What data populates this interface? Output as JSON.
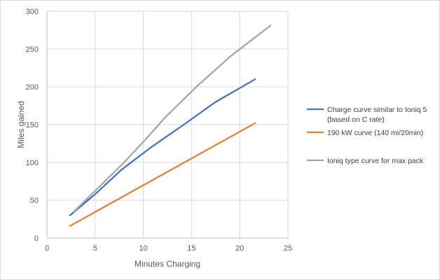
{
  "chart_data": {
    "type": "line",
    "title": "",
    "xlabel": "Minutes Charging",
    "ylabel": "Miles gained",
    "xlim": [
      0,
      25
    ],
    "ylim": [
      0,
      300
    ],
    "x_ticks": [
      0,
      5,
      10,
      15,
      20,
      25
    ],
    "y_ticks": [
      0,
      50,
      100,
      150,
      200,
      250,
      300
    ],
    "grid": "vertical and horizontal",
    "legend_position": "right",
    "series": [
      {
        "name": "Charge curve similar to Ioniq 5 (based on C rate)",
        "name_lines": [
          "Charge curve similar to Ioniq 5",
          "(based on C rate)"
        ],
        "color": "#4472c4",
        "x": [
          2.4,
          5.0,
          7.7,
          10.8,
          14.2,
          17.5,
          21.6
        ],
        "y": [
          30,
          58,
          90,
          120,
          150,
          180,
          210
        ]
      },
      {
        "name": "190 kW curve (140 mi/20min)",
        "name_lines": [
          "190 kW curve (140 mi/20min)"
        ],
        "color": "#ed7d31",
        "x": [
          2.4,
          21.6
        ],
        "y": [
          16,
          152
        ]
      },
      {
        "name": "Ioniq type curve for max pack",
        "name_lines": [
          "Ioniq type curve for max pack"
        ],
        "color": "#a5a5a5",
        "x": [
          2.8,
          5.2,
          8.0,
          10.2,
          12.3,
          15.5,
          19.0,
          23.2
        ],
        "y": [
          35,
          65,
          100,
          130,
          160,
          200,
          240,
          281
        ]
      }
    ]
  }
}
